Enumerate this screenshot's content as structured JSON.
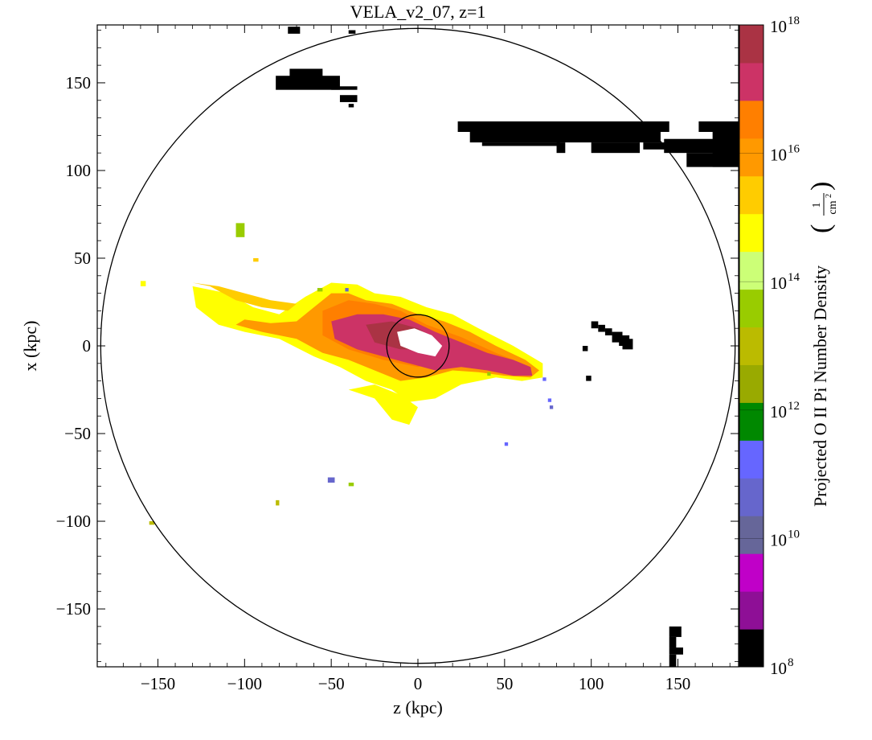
{
  "chart_data": {
    "type": "heatmap",
    "title": "VELA_v2_07, z=1",
    "xlabel": "z  (kpc)",
    "ylabel": "x  (kpc)",
    "xlim": [
      -185,
      185
    ],
    "ylim": [
      -183,
      183
    ],
    "x_ticks": [
      -150,
      -100,
      -50,
      0,
      50,
      100,
      150
    ],
    "y_ticks": [
      -150,
      -100,
      -50,
      0,
      50,
      100,
      150
    ],
    "x_tick_labels": [
      "−150",
      "−100",
      "−50",
      "0",
      "50",
      "100",
      "150"
    ],
    "y_tick_labels": [
      "−150",
      "−100",
      "−50",
      "0",
      "50",
      "100",
      "150"
    ],
    "circles": [
      {
        "center": [
          0,
          0
        ],
        "radius": 183
      },
      {
        "center": [
          0,
          0
        ],
        "radius": 18
      }
    ],
    "colorbar": {
      "label": "Projected O II Pi Number Density",
      "unit_numerator": "1",
      "unit_denominator": "cm",
      "unit_exponent": "2",
      "scale": "log",
      "range": [
        100000000.0,
        1e+18
      ],
      "tick_labels": [
        {
          "value_exp": 8,
          "base": "10",
          "exp": "8"
        },
        {
          "value_exp": 10,
          "base": "10",
          "exp": "10"
        },
        {
          "value_exp": 12,
          "base": "10",
          "exp": "12"
        },
        {
          "value_exp": 14,
          "base": "10",
          "exp": "14"
        },
        {
          "value_exp": 16,
          "base": "10",
          "exp": "16"
        },
        {
          "value_exp": 18,
          "base": "10",
          "exp": "18"
        }
      ],
      "colors": [
        "#000000",
        "#8e0f96",
        "#c000c8",
        "#666699",
        "#6666cc",
        "#6666ff",
        "#008800",
        "#99aa00",
        "#bbbb00",
        "#99cc00",
        "#ccff77",
        "#ffff00",
        "#ffcc00",
        "#ff9900",
        "#ff7f00",
        "#cc3366",
        "#aa3344"
      ]
    },
    "features": [
      {
        "kind": "disk",
        "color_key": "#cc3366",
        "description_level": "high",
        "points": [
          [
            -55,
            5
          ],
          [
            -30,
            12
          ],
          [
            -5,
            15
          ],
          [
            20,
            5
          ],
          [
            45,
            -6
          ],
          [
            65,
            -13
          ]
        ]
      },
      {
        "kind": "disk",
        "color_key": "#ff9900",
        "points": [
          [
            -120,
            30
          ],
          [
            -95,
            15
          ],
          [
            -70,
            10
          ],
          [
            -45,
            18
          ],
          [
            -20,
            20
          ],
          [
            10,
            10
          ],
          [
            40,
            -3
          ],
          [
            70,
            -14
          ]
        ]
      },
      {
        "kind": "clumps",
        "color_key": "#000000",
        "regions": [
          [
            -75,
            180,
            -70,
            177
          ],
          [
            -80,
            155,
            -45,
            148
          ],
          [
            -45,
            142,
            -35,
            138
          ],
          [
            20,
            128,
            145,
            118
          ],
          [
            162,
            128,
            185,
            102
          ],
          [
            100,
            12,
            125,
            0
          ],
          [
            145,
            -160,
            155,
            -183
          ]
        ]
      }
    ]
  }
}
